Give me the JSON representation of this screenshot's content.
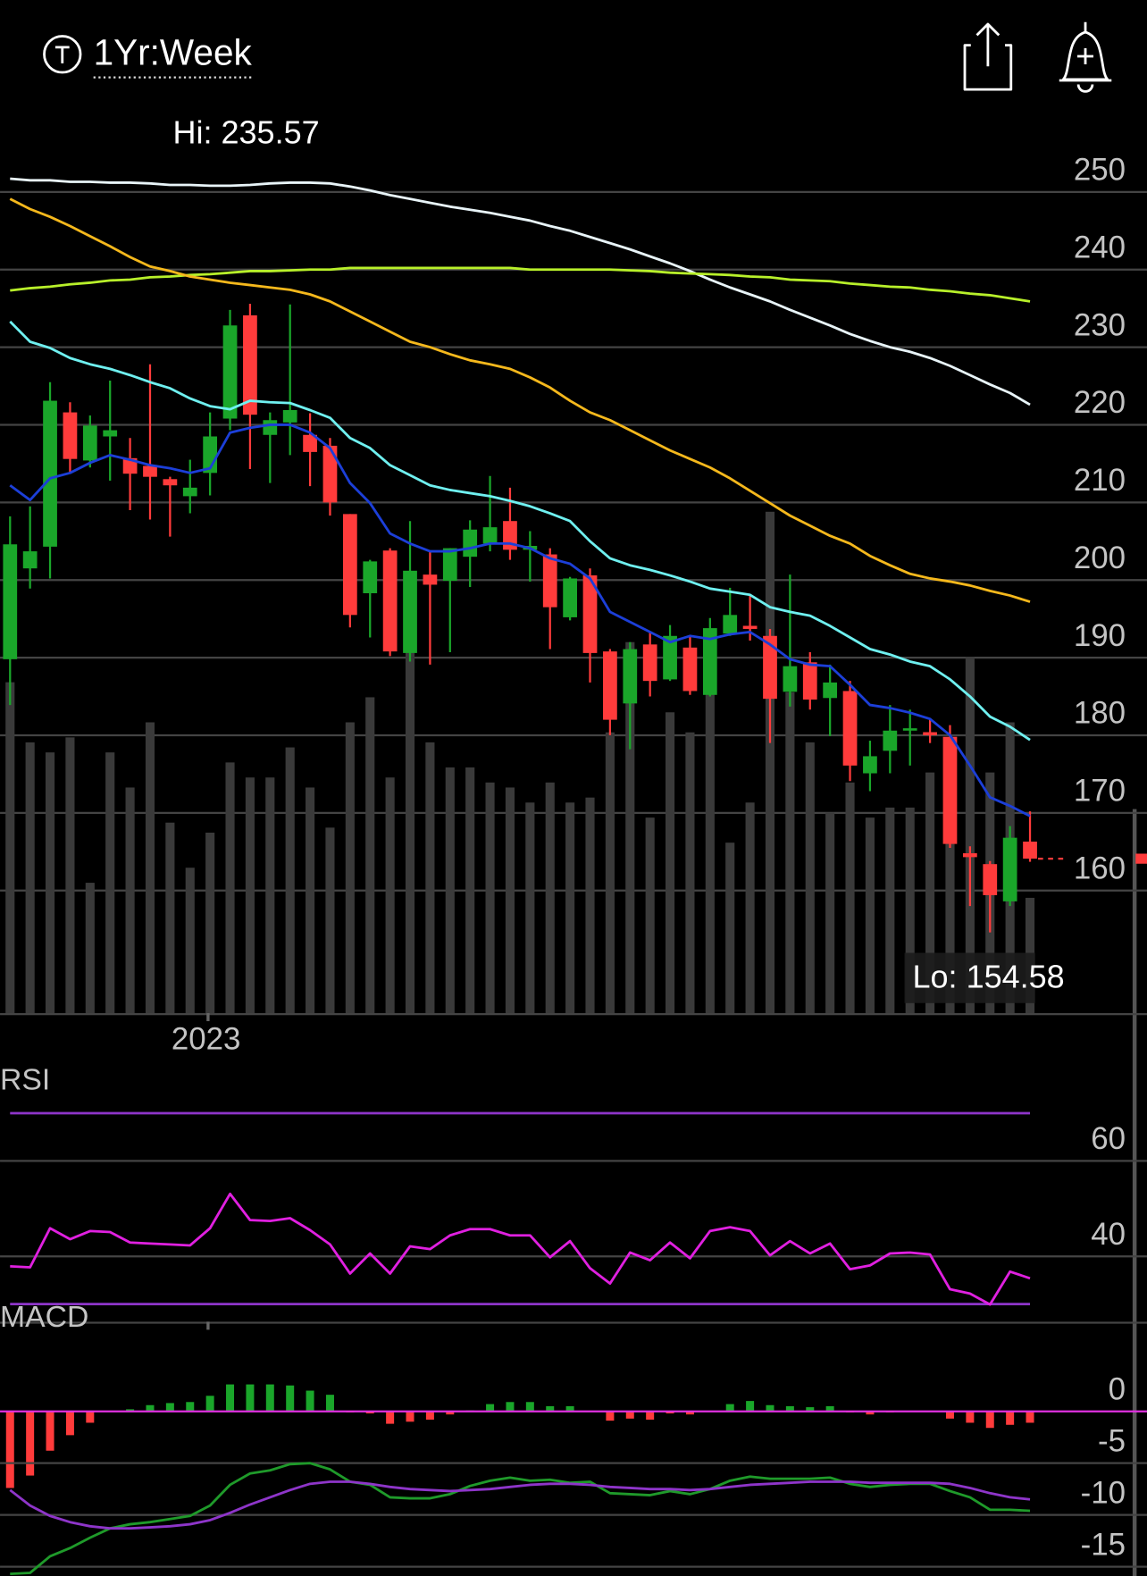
{
  "header": {
    "title": "1Yr:Week"
  },
  "chart_data": [
    {
      "type": "candlestick",
      "categories": [
        null,
        null,
        null,
        null,
        null,
        null,
        null,
        null,
        null,
        null,
        "2023",
        null,
        null,
        null,
        null,
        null,
        null,
        null,
        null,
        null,
        null,
        null,
        null,
        null,
        null,
        null,
        null,
        null,
        null,
        null,
        null,
        null,
        null,
        null,
        null,
        null,
        null,
        null,
        null,
        null,
        null,
        null,
        null,
        null,
        null,
        null,
        null,
        null,
        null,
        null,
        null,
        null
      ],
      "open": [
        189.8,
        201.5,
        204.3,
        221.6,
        215.4,
        218.5,
        215.7,
        214.7,
        213.0,
        210.8,
        213.8,
        220.8,
        234.1,
        218.7,
        220.3,
        218.7,
        217.3,
        208.5,
        198.3,
        203.8,
        190.6,
        200.7,
        199.9,
        203.0,
        204.7,
        207.6,
        203.9,
        203.3,
        195.2,
        200.6,
        190.8,
        184.1,
        191.7,
        187.2,
        191.3,
        185.2,
        193.1,
        194.1,
        192.8,
        185.6,
        189.4,
        184.8,
        185.7,
        175.1,
        178.0,
        180.6,
        180.4,
        179.8,
        164.8,
        163.4,
        158.6,
        166.3
      ],
      "high": [
        208.2,
        209.5,
        225.5,
        222.9,
        221.2,
        225.7,
        218.3,
        227.8,
        213.3,
        215.5,
        221.6,
        234.8,
        235.6,
        221.6,
        235.5,
        221.5,
        218.3,
        208.5,
        202.6,
        204.1,
        207.6,
        203.7,
        204.1,
        207.7,
        213.4,
        211.9,
        206.3,
        204.1,
        200.4,
        201.5,
        191.1,
        192.0,
        193.4,
        194.2,
        192.9,
        195.1,
        199.0,
        198.0,
        193.7,
        200.7,
        190.7,
        189.1,
        187.0,
        179.3,
        183.9,
        183.3,
        182.2,
        181.3,
        165.7,
        163.8,
        168.3,
        170.2
      ],
      "low": [
        183.9,
        198.9,
        200.2,
        213.8,
        214.5,
        212.8,
        209.0,
        207.8,
        205.6,
        208.6,
        210.9,
        219.3,
        214.3,
        212.5,
        216.1,
        212.1,
        208.3,
        193.9,
        192.6,
        190.2,
        189.5,
        189.1,
        190.7,
        199.1,
        203.7,
        202.6,
        199.8,
        191.1,
        194.8,
        186.8,
        180.0,
        178.2,
        185.0,
        187.0,
        185.2,
        185.0,
        192.8,
        192.2,
        179.0,
        183.7,
        183.3,
        179.9,
        174.1,
        172.8,
        175.1,
        176.1,
        179.0,
        165.5,
        158.0,
        154.6,
        158.0,
        163.7
      ],
      "close": [
        204.6,
        203.7,
        223.1,
        215.6,
        219.9,
        219.3,
        213.7,
        213.3,
        212.2,
        211.9,
        218.5,
        232.8,
        221.3,
        220.6,
        221.9,
        216.5,
        210.0,
        195.5,
        202.4,
        190.8,
        201.2,
        199.4,
        204.1,
        206.5,
        206.8,
        203.9,
        204.4,
        196.5,
        200.2,
        190.6,
        182.0,
        191.1,
        187.0,
        192.8,
        185.7,
        193.8,
        195.5,
        193.7,
        184.7,
        188.9,
        184.6,
        186.8,
        176.1,
        177.3,
        180.6,
        180.9,
        180.0,
        166.0,
        164.3,
        159.4,
        166.8,
        164.1
      ],
      "up_color": "#1aa62a",
      "down_color": "#ff3b3b",
      "ylim": [
        144.2,
        256.6
      ],
      "yticks": [
        160,
        170,
        180,
        190,
        200,
        210,
        220,
        230,
        240,
        250
      ],
      "grid": true,
      "annotations": {
        "hi": "Hi: 235.57",
        "lo": "Lo: 154.58"
      },
      "series": [
        {
          "color": "#e8f4f8",
          "values": [
            251.7,
            251.5,
            251.5,
            251.3,
            251.3,
            251.2,
            251.2,
            251.1,
            250.9,
            250.9,
            250.8,
            250.8,
            250.9,
            251.1,
            251.2,
            251.2,
            251.1,
            250.7,
            250.2,
            249.6,
            249.1,
            248.6,
            248.1,
            247.7,
            247.3,
            246.8,
            246.3,
            245.6,
            245.0,
            244.2,
            243.4,
            242.6,
            241.7,
            240.8,
            239.8,
            238.7,
            237.7,
            236.8,
            235.9,
            234.8,
            233.8,
            232.8,
            231.7,
            230.8,
            230.0,
            229.4,
            228.6,
            227.6,
            226.4,
            225.2,
            224.1,
            222.6
          ]
        },
        {
          "color": "#b8f02a",
          "values": [
            237.3,
            237.6,
            237.8,
            238.1,
            238.3,
            238.6,
            238.7,
            239.0,
            239.1,
            239.3,
            239.4,
            239.6,
            239.8,
            239.8,
            239.9,
            240.0,
            240.0,
            240.2,
            240.2,
            240.2,
            240.2,
            240.2,
            240.2,
            240.2,
            240.2,
            240.2,
            240.0,
            240.0,
            240.0,
            240.0,
            240.0,
            239.9,
            239.8,
            239.6,
            239.5,
            239.4,
            239.3,
            239.1,
            239.0,
            238.7,
            238.6,
            238.5,
            238.2,
            238.0,
            237.8,
            237.7,
            237.4,
            237.2,
            236.9,
            236.7,
            236.3,
            235.9
          ]
        },
        {
          "color": "#f5b81c",
          "values": [
            249.1,
            247.8,
            246.8,
            245.6,
            244.3,
            243.0,
            241.6,
            240.4,
            239.8,
            239.1,
            238.7,
            238.3,
            238.0,
            237.7,
            237.4,
            236.8,
            235.9,
            234.6,
            233.3,
            232.0,
            230.7,
            230.0,
            229.1,
            228.3,
            227.8,
            227.2,
            226.1,
            224.8,
            223.1,
            221.6,
            220.6,
            219.3,
            218.0,
            216.7,
            215.6,
            214.5,
            213.1,
            211.5,
            209.9,
            208.3,
            207.0,
            205.7,
            204.7,
            203.1,
            201.9,
            200.8,
            200.2,
            199.8,
            199.3,
            198.6,
            198.0,
            197.2
          ]
        },
        {
          "color": "#6ff0f0",
          "values": [
            233.3,
            230.7,
            229.9,
            228.6,
            227.8,
            227.2,
            226.4,
            225.5,
            224.7,
            223.4,
            222.4,
            222.0,
            223.1,
            222.9,
            222.8,
            221.9,
            220.9,
            218.3,
            217.0,
            214.8,
            213.5,
            212.2,
            211.6,
            211.2,
            210.8,
            210.2,
            209.5,
            208.6,
            207.6,
            205.0,
            202.8,
            201.9,
            201.3,
            200.6,
            199.8,
            198.9,
            198.5,
            198.1,
            196.5,
            195.9,
            195.4,
            194.1,
            192.6,
            191.1,
            190.4,
            189.5,
            188.9,
            187.2,
            185.0,
            182.4,
            181.1,
            179.4
          ]
        },
        {
          "color": "#1c3fd8",
          "values": [
            212.2,
            210.3,
            213.1,
            213.8,
            215.1,
            216.1,
            215.5,
            214.8,
            214.4,
            213.8,
            214.4,
            219.0,
            219.6,
            220.0,
            220.0,
            219.0,
            217.0,
            212.5,
            209.9,
            206.0,
            204.7,
            203.7,
            203.7,
            204.1,
            204.7,
            204.7,
            204.1,
            202.8,
            202.1,
            200.2,
            195.9,
            194.6,
            193.3,
            192.0,
            192.8,
            192.4,
            193.0,
            193.3,
            191.7,
            189.8,
            189.1,
            188.9,
            186.5,
            183.9,
            183.5,
            182.9,
            182.1,
            180.0,
            176.1,
            172.0,
            170.9,
            169.6
          ]
        }
      ],
      "volume": {
        "color": "#3a3a3a",
        "ylim": [
          0,
          174
        ],
        "values": [
          66,
          54,
          52,
          55,
          26,
          52,
          45,
          58,
          38,
          29,
          36,
          50,
          47,
          47,
          53,
          45,
          37,
          58,
          63,
          47,
          72,
          54,
          49,
          49,
          46,
          45,
          42,
          46,
          42,
          43,
          56,
          74,
          39,
          60,
          56,
          66,
          34,
          42,
          100,
          64,
          54,
          40,
          46,
          39,
          41,
          41,
          48,
          40,
          71,
          48,
          58,
          23
        ]
      }
    },
    {
      "type": "line",
      "title": "RSI",
      "ylim": [
        26.3,
        73.7
      ],
      "yticks": [
        40,
        60
      ],
      "grid": true,
      "bands": [
        70,
        30
      ],
      "band_color": "#8e35c9",
      "series": [
        {
          "color": "#e020e0",
          "values": [
            37.9,
            37.7,
            45.9,
            43.6,
            45.3,
            45.1,
            42.9,
            42.7,
            42.5,
            42.3,
            45.9,
            53.1,
            47.6,
            47.4,
            48.0,
            45.5,
            42.5,
            36.4,
            40.6,
            36.4,
            42.1,
            41.5,
            44.4,
            45.7,
            45.7,
            44.4,
            44.4,
            39.8,
            43.2,
            37.5,
            34.3,
            40.8,
            39.2,
            42.9,
            39.6,
            45.3,
            46.1,
            45.3,
            40.2,
            43.2,
            40.6,
            42.7,
            37.3,
            38.1,
            40.6,
            40.8,
            40.4,
            33.1,
            32.2,
            29.9,
            36.8,
            35.4
          ]
        }
      ]
    },
    {
      "type": "macd",
      "title": "MACD",
      "ylim": [
        -15.9,
        7.2
      ],
      "yticks": [
        0,
        -5,
        -10,
        -15
      ],
      "grid": true,
      "baseline_color": "#e030e0",
      "histogram": {
        "up_color": "#1aa62a",
        "down_color": "#ff3b3b",
        "values": [
          -7.4,
          -6.2,
          -3.8,
          -2.3,
          -1.1,
          0,
          0.2,
          0.6,
          0.8,
          0.9,
          1.5,
          2.6,
          2.6,
          2.6,
          2.5,
          2.0,
          1.6,
          -0.1,
          -0.2,
          -1.2,
          -1.0,
          -0.8,
          -0.3,
          0.1,
          0.7,
          0.9,
          0.9,
          0.5,
          0.5,
          0,
          -0.9,
          -0.7,
          -0.8,
          -0.2,
          -0.3,
          0,
          0.7,
          1.0,
          0.6,
          0.5,
          0.4,
          0.5,
          -0.1,
          -0.3,
          -0.1,
          0,
          0,
          -0.7,
          -1.1,
          -1.6,
          -1.3,
          -1.1
        ]
      },
      "series": [
        {
          "color": "#1f9a2a",
          "values": [
            -15.7,
            -15.6,
            -14.0,
            -13.2,
            -12.2,
            -11.3,
            -10.9,
            -10.7,
            -10.4,
            -10.1,
            -9.1,
            -7.1,
            -6.0,
            -5.7,
            -5.1,
            -5.0,
            -5.6,
            -6.8,
            -7.1,
            -8.3,
            -8.4,
            -8.4,
            -8.0,
            -7.2,
            -6.7,
            -6.4,
            -6.7,
            -6.6,
            -6.9,
            -6.8,
            -7.9,
            -8.0,
            -8.1,
            -7.7,
            -8.0,
            -7.5,
            -6.7,
            -6.3,
            -6.5,
            -6.5,
            -6.5,
            -6.4,
            -7.0,
            -7.3,
            -7.1,
            -7.0,
            -7.0,
            -7.7,
            -8.3,
            -9.5,
            -9.5,
            -9.6
          ]
        },
        {
          "color": "#8e35c9",
          "values": [
            -7.6,
            -9.1,
            -10.1,
            -10.7,
            -11.1,
            -11.3,
            -11.3,
            -11.2,
            -11.1,
            -10.9,
            -10.5,
            -9.8,
            -9.0,
            -8.3,
            -7.6,
            -7.0,
            -6.8,
            -6.8,
            -7.0,
            -7.3,
            -7.5,
            -7.6,
            -7.7,
            -7.6,
            -7.5,
            -7.3,
            -7.1,
            -7.0,
            -7.0,
            -7.1,
            -7.3,
            -7.4,
            -7.5,
            -7.5,
            -7.6,
            -7.5,
            -7.3,
            -7.1,
            -7.0,
            -6.9,
            -6.8,
            -6.8,
            -6.8,
            -6.9,
            -6.9,
            -6.9,
            -6.9,
            -7.0,
            -7.4,
            -7.9,
            -8.3,
            -8.5
          ]
        }
      ]
    }
  ]
}
